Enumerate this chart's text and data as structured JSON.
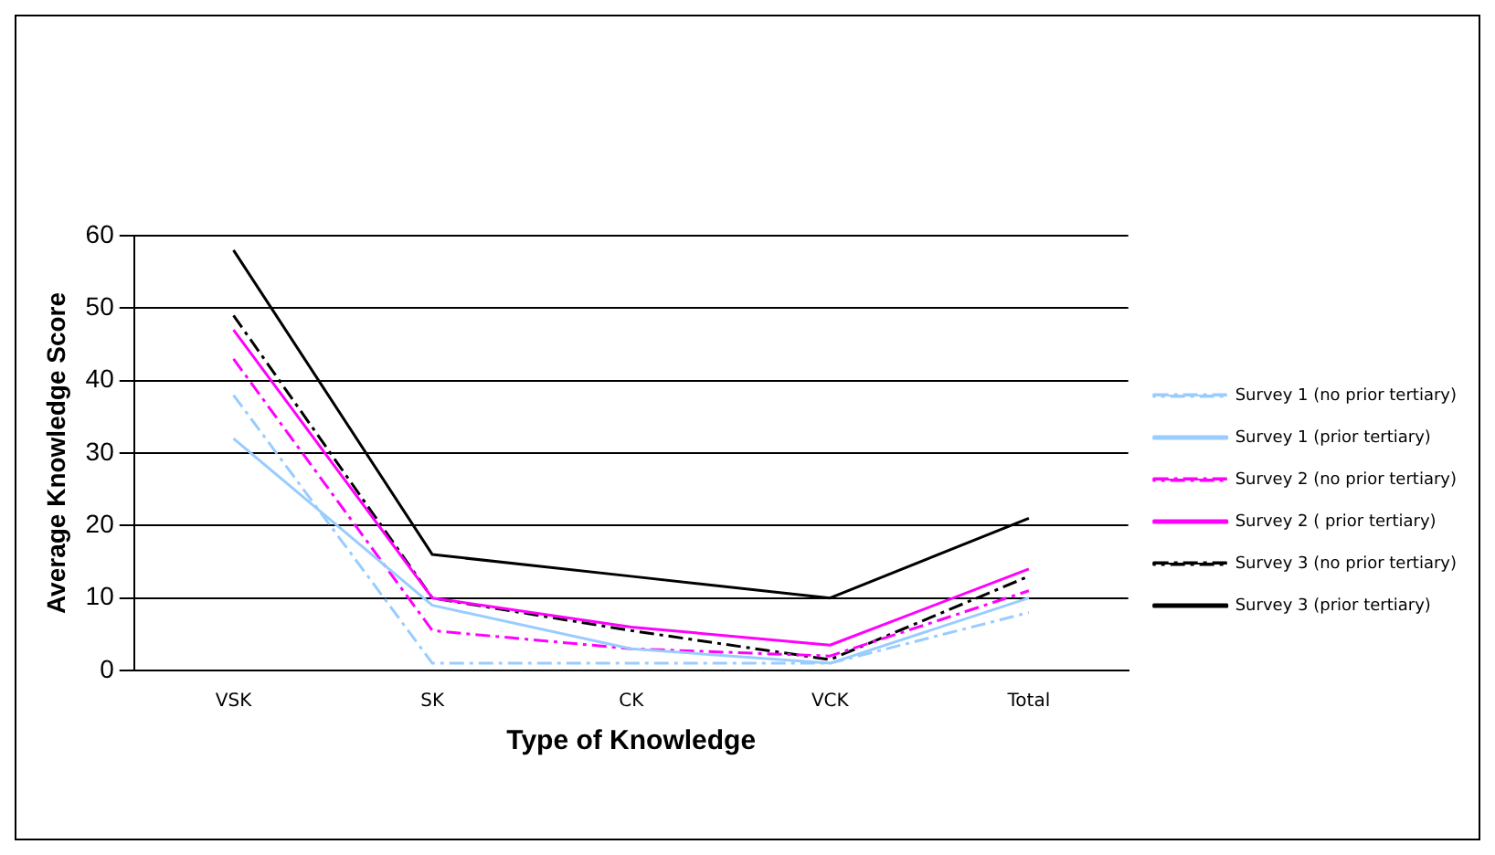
{
  "chart_data": {
    "type": "line",
    "xlabel": "Type of Knowledge",
    "ylabel": "Average Knowledge Score",
    "categories": [
      "VSK",
      "SK",
      "CK",
      "VCK",
      "Total"
    ],
    "ylim": [
      0,
      60
    ],
    "yticks": [
      0,
      10,
      20,
      30,
      40,
      50,
      60
    ],
    "grid": "y",
    "legend": "right",
    "marker": "none",
    "series": [
      {
        "name": "Survey 1 (no prior tertiary)",
        "color": "#99ccff",
        "line_style": "dashed",
        "values": [
          38,
          1,
          1,
          1,
          8
        ]
      },
      {
        "name": "Survey 1 (prior tertiary)",
        "color": "#99ccff",
        "line_style": "solid",
        "values": [
          32,
          9,
          3,
          1,
          10
        ]
      },
      {
        "name": "Survey 2 (no prior tertiary)",
        "color": "#ff00ff",
        "line_style": "dashed",
        "values": [
          43,
          5.5,
          3,
          2,
          11
        ]
      },
      {
        "name": "Survey 2 ( prior tertiary)",
        "color": "#ff00ff",
        "line_style": "solid",
        "values": [
          47,
          10,
          6,
          3.5,
          14
        ]
      },
      {
        "name": "Survey 3 (no prior tertiary)",
        "color": "#000000",
        "line_style": "dashed",
        "values": [
          49,
          10,
          5.5,
          1.5,
          13
        ]
      },
      {
        "name": "Survey 3 (prior tertiary)",
        "color": "#000000",
        "line_style": "solid",
        "values": [
          58,
          16,
          13,
          10,
          21
        ]
      }
    ]
  }
}
